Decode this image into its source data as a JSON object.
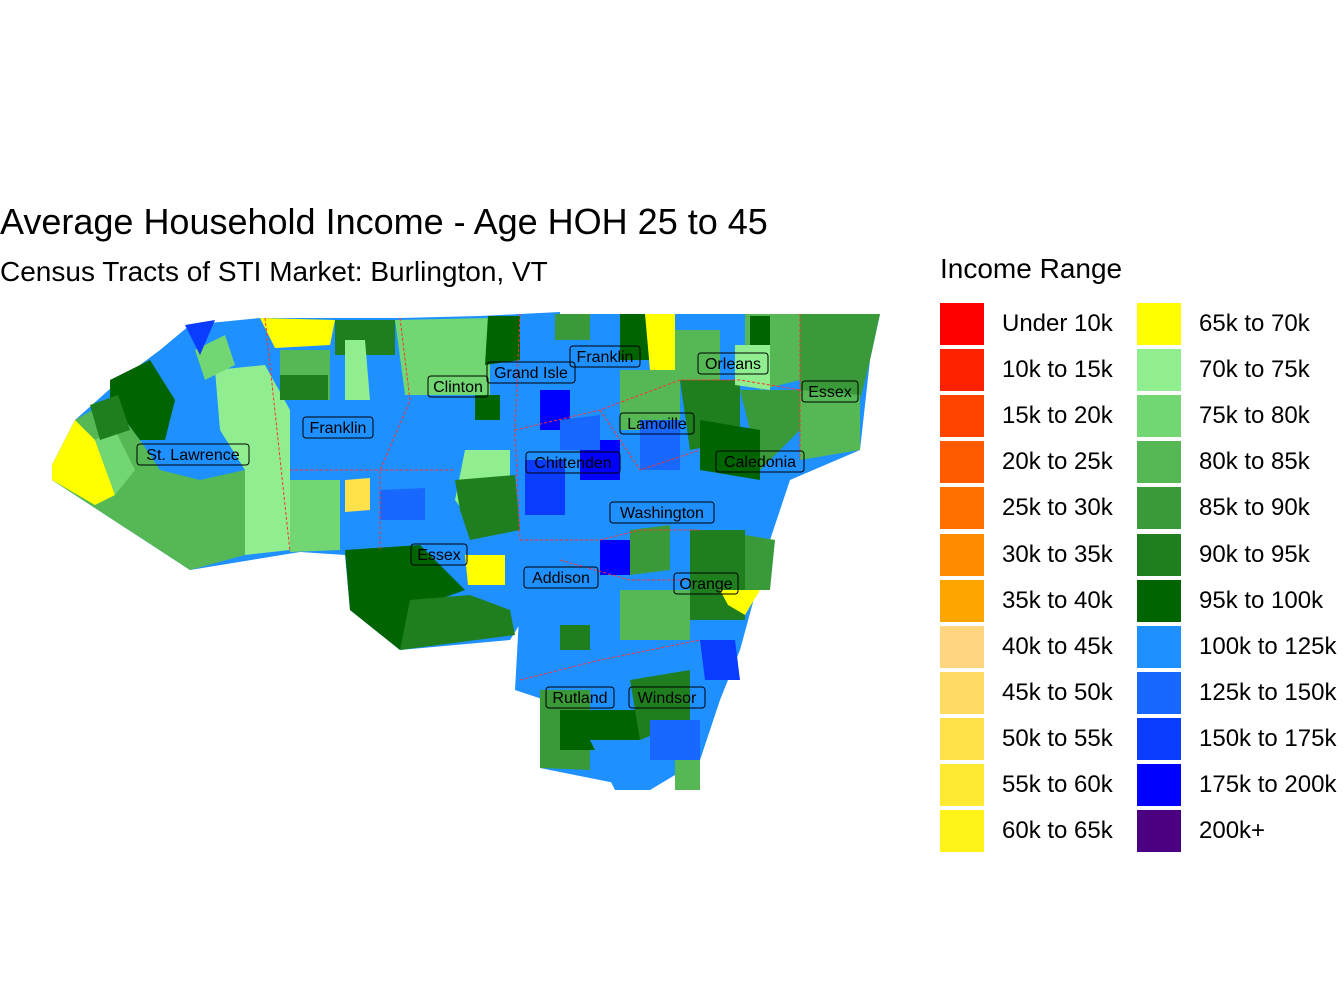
{
  "title": "Average Household Income - Age HOH 25 to 45",
  "subtitle": "Census Tracts of STI Market: Burlington, VT",
  "legend": {
    "title": "Income Range",
    "items": [
      {
        "label": "Under 10k",
        "color": "#ff0000"
      },
      {
        "label": "10k to 15k",
        "color": "#ff2200"
      },
      {
        "label": "15k to 20k",
        "color": "#ff4400"
      },
      {
        "label": "20k to 25k",
        "color": "#ff5a00"
      },
      {
        "label": "25k to 30k",
        "color": "#ff7000"
      },
      {
        "label": "30k to 35k",
        "color": "#ff8c00"
      },
      {
        "label": "35k to 40k",
        "color": "#ffa500"
      },
      {
        "label": "40k to 45k",
        "color": "#ffd57f"
      },
      {
        "label": "45k to 50k",
        "color": "#ffdb66"
      },
      {
        "label": "50k to 55k",
        "color": "#ffe24a"
      },
      {
        "label": "55k to 60k",
        "color": "#ffea33"
      },
      {
        "label": "60k to 65k",
        "color": "#fff31a"
      },
      {
        "label": "65k to 70k",
        "color": "#ffff00"
      },
      {
        "label": "70k to 75k",
        "color": "#90ee90"
      },
      {
        "label": "75k to 80k",
        "color": "#72d672"
      },
      {
        "label": "80k to 85k",
        "color": "#55b855"
      },
      {
        "label": "85k to 90k",
        "color": "#3a9a3a"
      },
      {
        "label": "90k to 95k",
        "color": "#1f7f1f"
      },
      {
        "label": "95k to 100k",
        "color": "#006400"
      },
      {
        "label": "100k to 125k",
        "color": "#1e90ff"
      },
      {
        "label": "125k to 150k",
        "color": "#1868ff"
      },
      {
        "label": "150k to 175k",
        "color": "#0a3cff"
      },
      {
        "label": "175k to 200k",
        "color": "#0000ff"
      },
      {
        "label": "200k+",
        "color": "#4b0082"
      }
    ]
  },
  "counties": [
    "St. Lawrence",
    "Franklin",
    "Clinton",
    "Grand Isle",
    "Franklin",
    "Orleans",
    "Essex",
    "Lamoille",
    "Chittenden",
    "Caledonia",
    "Washington",
    "Essex",
    "Addison",
    "Orange",
    "Rutland",
    "Windsor"
  ]
}
